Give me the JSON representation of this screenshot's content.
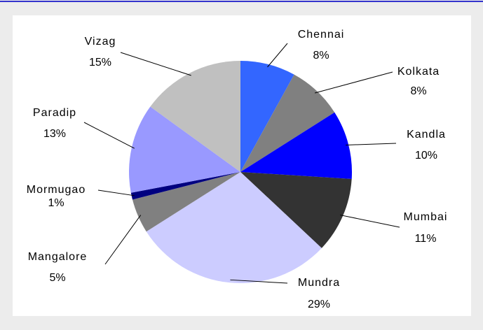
{
  "chart_data": {
    "type": "pie",
    "categories": [
      "Chennai",
      "Kolkata",
      "Kandla",
      "Mumbai",
      "Mundra",
      "Mangalore",
      "Mormugao",
      "Paradip",
      "Vizag"
    ],
    "values": [
      8,
      8,
      10,
      11,
      29,
      5,
      1,
      13,
      15
    ],
    "value_labels": [
      "8%",
      "8%",
      "10%",
      "11%",
      "29%",
      "5%",
      "1%",
      "13%",
      "15%"
    ],
    "colors": [
      "#3366ff",
      "#808080",
      "#0000ff",
      "#333333",
      "#ccccff",
      "#808080",
      "#000080",
      "#9999ff",
      "#c0c0c0"
    ]
  }
}
